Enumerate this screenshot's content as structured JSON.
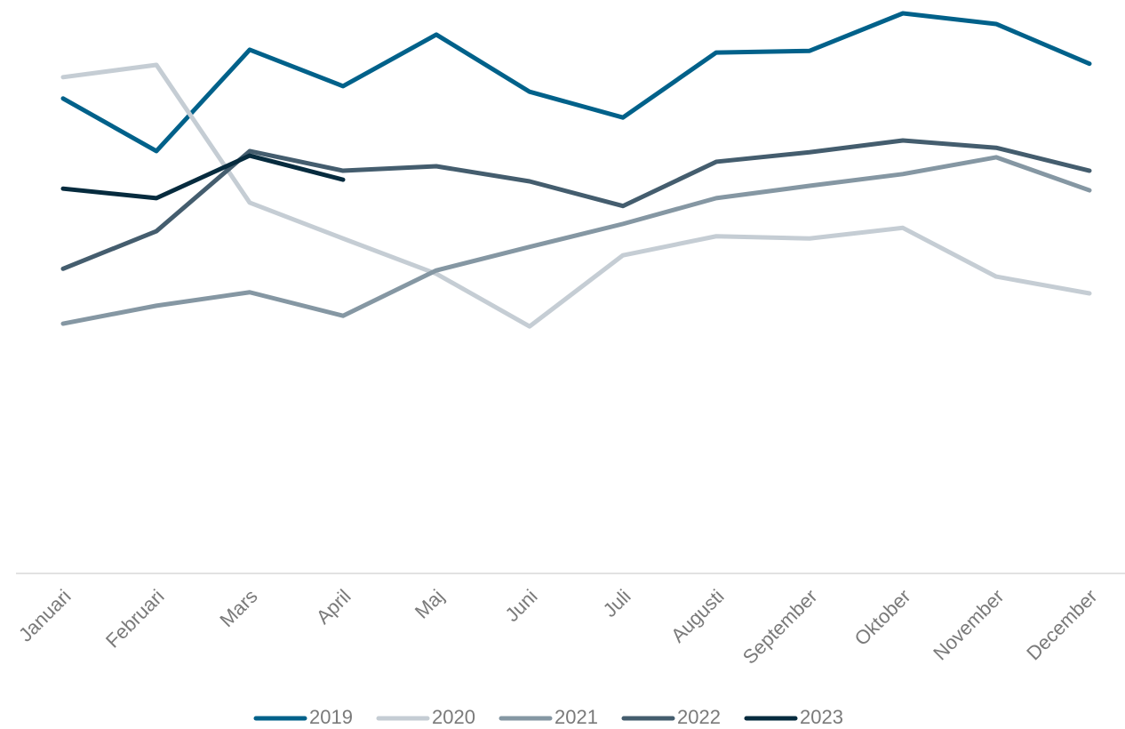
{
  "chart_data": {
    "type": "line",
    "categories": [
      "Januari",
      "Februari",
      "Mars",
      "April",
      "Maj",
      "Juni",
      "Juli",
      "Augusti",
      "September",
      "Oktober",
      "November",
      "December"
    ],
    "ylim": [
      0,
      100
    ],
    "legend": "bottom",
    "series": [
      {
        "name": "2019",
        "color": "#00618a",
        "values": [
          84.8,
          75.4,
          93.5,
          87.0,
          96.2,
          86.0,
          81.4,
          93.0,
          93.3,
          100,
          98.1,
          91.0
        ]
      },
      {
        "name": "2020",
        "color": "#c5cdd4",
        "values": [
          88.6,
          90.8,
          66.2,
          59.8,
          53.5,
          44.1,
          56.8,
          60.2,
          59.8,
          61.7,
          53.0,
          50.0
        ]
      },
      {
        "name": "2021",
        "color": "#8597a3",
        "values": [
          44.6,
          47.8,
          50.2,
          46.0,
          54.1,
          58.3,
          62.4,
          67.0,
          69.2,
          71.3,
          74.3,
          68.4
        ]
      },
      {
        "name": "2022",
        "color": "#445d6e",
        "values": [
          54.4,
          61.1,
          75.4,
          71.9,
          72.7,
          70.0,
          65.6,
          73.5,
          75.2,
          77.3,
          76.0,
          71.9
        ]
      },
      {
        "name": "2023",
        "color": "#062b3e",
        "values": [
          68.7,
          67.0,
          74.6,
          70.3,
          null,
          null,
          null,
          null,
          null,
          null,
          null,
          null
        ]
      }
    ]
  }
}
